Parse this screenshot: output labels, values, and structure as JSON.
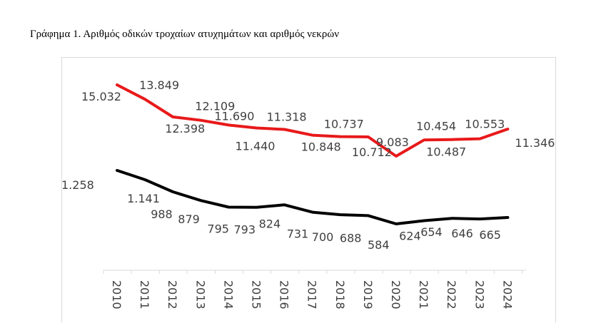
{
  "title": "Γράφημα 1. Αριθμός οδικών τροχαίων ατυχημάτων και αριθμός νεκρών",
  "colors": {
    "accidents": "#e8191a",
    "deaths": "#000000",
    "text": "#404040",
    "axis": "#d9d9d9"
  },
  "chart_data": {
    "type": "line",
    "title": "Γράφημα 1. Αριθμός οδικών τροχαίων ατυχημάτων και αριθμός νεκρών",
    "xlabel": "",
    "ylabel": "",
    "grid": false,
    "legend": "none",
    "categories": [
      "2010",
      "2011",
      "2012",
      "2013",
      "2014",
      "2015",
      "2016",
      "2017",
      "2018",
      "2019",
      "2020",
      "2021",
      "2022",
      "2023",
      "2024"
    ],
    "series": [
      {
        "color": "#e8191a",
        "values": [
          15032,
          13849,
          12398,
          12109,
          11690,
          11440,
          11318,
          10848,
          10737,
          10712,
          9083,
          10454,
          10487,
          10553,
          11346
        ],
        "labels": [
          "15.032",
          "13.849",
          "12.398",
          "12.109",
          "11.690",
          "11.440",
          "11.318",
          "10.848",
          "10.737",
          "10.712",
          "9.083",
          "10.454",
          "10.487",
          "10.553",
          "11.346"
        ]
      },
      {
        "color": "#000000",
        "values": [
          1258,
          1141,
          988,
          879,
          795,
          793,
          824,
          731,
          700,
          688,
          584,
          624,
          654,
          646,
          665
        ],
        "labels": [
          "1.258",
          "1.141",
          "988",
          "879",
          "795",
          "793",
          "824",
          "731",
          "700",
          "688",
          "584",
          "624",
          "654",
          "646",
          "665"
        ]
      }
    ]
  }
}
